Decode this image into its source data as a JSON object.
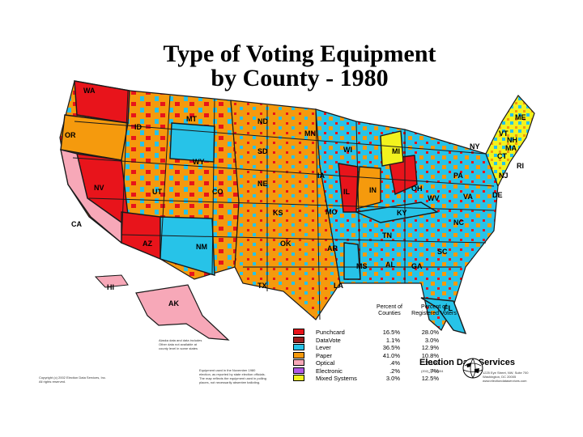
{
  "title_line1": "Type of Voting Equipment",
  "title_line2": "by County - 1980",
  "colors": {
    "punchcard": "#e8141b",
    "datavote": "#9c1c1c",
    "lever": "#27c3e8",
    "paper": "#f59a0d",
    "optical": "#f7a8b8",
    "electronic": "#b15ae6",
    "mixed": "#f2f21e",
    "border": "#1a1a1a"
  },
  "state_labels": {
    "wa": "WA",
    "or": "OR",
    "id": "ID",
    "mt": "MT",
    "nd": "ND",
    "mn": "MN",
    "wi": "WI",
    "mi": "MI",
    "ny": "NY",
    "me": "ME",
    "vt": "VT",
    "nh": "NH",
    "ma": "MA",
    "ri": "RI",
    "ct": "CT",
    "nj": "NJ",
    "de": "DE",
    "pa": "PA",
    "oh": "OH",
    "in": "IN",
    "il": "IL",
    "ia": "IA",
    "sd": "SD",
    "wy": "WY",
    "ne": "NE",
    "nv": "NV",
    "ca": "CA",
    "ut": "UT",
    "co": "CO",
    "ks": "KS",
    "mo": "MO",
    "ky": "KY",
    "wv": "WV",
    "va": "VA",
    "nc": "NC",
    "tn": "TN",
    "sc": "SC",
    "ga": "GA",
    "al": "AL",
    "ms": "MS",
    "ar": "AR",
    "la": "LA",
    "tx": "TX",
    "ok": "OK",
    "nm": "NM",
    "az": "AZ",
    "fl": "FL",
    "hi": "HI",
    "ak": "AK"
  },
  "legend": {
    "col1_header_line1": "Percent of",
    "col1_header_line2": "Counties",
    "col2_header_line1": "Percent of",
    "col2_header_line2": "Registered Voters",
    "rows": [
      {
        "name": "Punchcard",
        "counties": "16.5%",
        "voters": "28.0%",
        "color": "#e8141b"
      },
      {
        "name": "DataVote",
        "counties": "1.1%",
        "voters": "3.0%",
        "color": "#9c1c1c"
      },
      {
        "name": "Lever",
        "counties": "36.5%",
        "voters": "12.9%",
        "color": "#27c3e8"
      },
      {
        "name": "Paper",
        "counties": "41.0%",
        "voters": "10.8%",
        "color": "#f59a0d"
      },
      {
        "name": "Optical",
        "counties": ".4%",
        "voters": "2.1%",
        "color": "#f7a8b8"
      },
      {
        "name": "Electronic",
        "counties": ".2%",
        "voters": ".7%",
        "color": "#b15ae6"
      },
      {
        "name": "Mixed Systems",
        "counties": "3.0%",
        "voters": "12.5%",
        "color": "#f2f21e"
      }
    ]
  },
  "note_inset": "Alaska data and data includes\nOther data not available at\ncounty level in some states",
  "footnote": "Equipment used in the November 1980\nelection, as reported by state election officials.\nThe map reflects the equipment used in polling\nplaces, not necessarily absentee balloting.",
  "copyright": "Copyright (c) 2002 Election Data Services, Inc.\nAll rights reserved.",
  "brand_name": "Election Data Services",
  "brand_phone": "(202) 789-2004",
  "brand_address": "1225 Eye Street, NW, Suite 700\nWashington, DC 20005\nwww.electiondataservices.com"
}
